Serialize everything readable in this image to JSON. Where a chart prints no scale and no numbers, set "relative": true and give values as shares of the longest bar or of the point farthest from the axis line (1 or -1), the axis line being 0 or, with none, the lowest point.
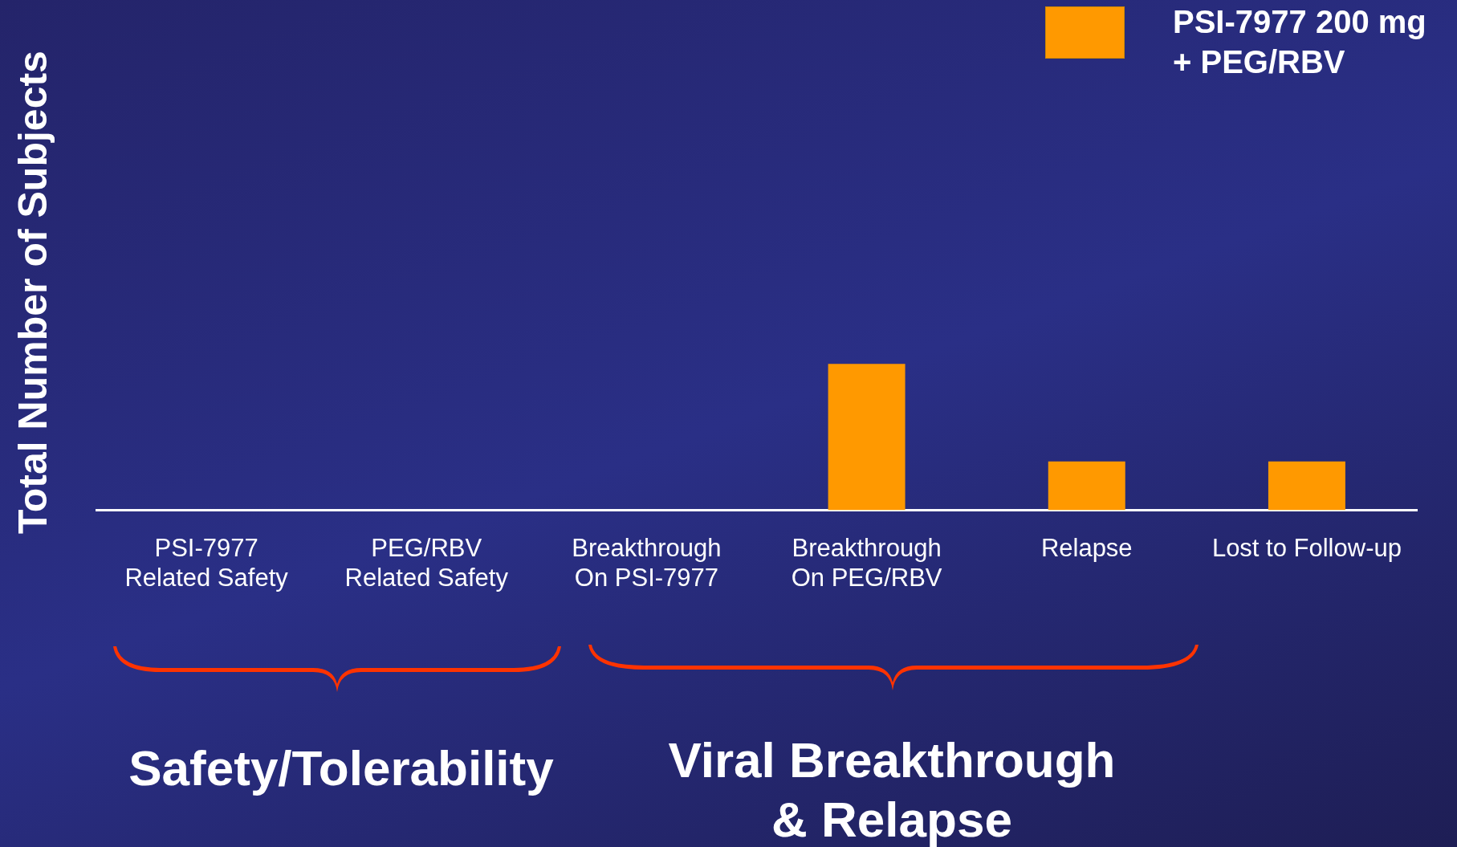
{
  "chart_data": {
    "type": "bar",
    "ylabel": "Total Number of Subjects",
    "categories": [
      "PSI-7977\nRelated Safety",
      "PEG/RBV\nRelated Safety",
      "Breakthrough\nOn PSI-7977",
      "Breakthrough\nOn PEG/RBV",
      "Relapse",
      "Lost to Follow-up"
    ],
    "series": [
      {
        "name": "PSI-7977 200 mg\n+ PEG/RBV",
        "color": "#ff9900",
        "values": [
          0,
          0,
          0,
          1,
          0.333,
          0.333
        ]
      }
    ],
    "relative": true,
    "legend": "top right",
    "grid": false,
    "annotations": [
      "Safety/Tolerability",
      "Viral Breakthrough\n& Relapse"
    ]
  }
}
